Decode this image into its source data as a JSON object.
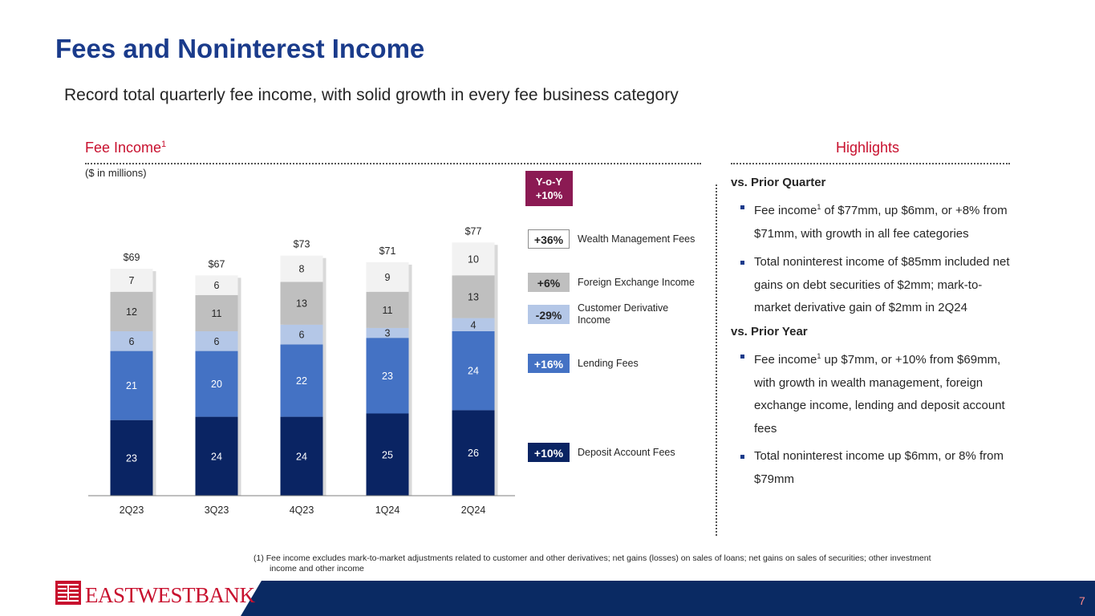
{
  "page": {
    "title": "Fees and Noninterest Income",
    "subtitle": "Record total quarterly fee income, with solid growth in every fee business category",
    "page_number": "7"
  },
  "left_header": {
    "label": "Fee Income",
    "sup": "1"
  },
  "right_header": {
    "label": "Highlights"
  },
  "units_note": "($ in millions)",
  "yoy": {
    "line1": "Y-o-Y",
    "line2": "+10%"
  },
  "legend": [
    {
      "pct": "+36%",
      "label": "Wealth Management Fees",
      "badge_bg": "#ffffff",
      "badge_fg": "#262626",
      "badge_border": "#8c8c8c"
    },
    {
      "pct": "+6%",
      "label": "Foreign Exchange Income",
      "badge_bg": "#bfbfbf",
      "badge_fg": "#262626",
      "badge_border": "#bfbfbf"
    },
    {
      "pct": "-29%",
      "label": "Customer Derivative Income",
      "badge_bg": "#b4c7e7",
      "badge_fg": "#262626",
      "badge_border": "#b4c7e7"
    },
    {
      "pct": "+16%",
      "label": "Lending Fees",
      "badge_bg": "#4472c4",
      "badge_fg": "#ffffff",
      "badge_border": "#4472c4"
    },
    {
      "pct": "+10%",
      "label": "Deposit Account Fees",
      "badge_bg": "#0a2463",
      "badge_fg": "#ffffff",
      "badge_border": "#0a2463"
    }
  ],
  "chart_data": {
    "type": "bar",
    "stacked": true,
    "title": "Fee Income",
    "ylabel": "$ in millions",
    "categories": [
      "2Q23",
      "3Q23",
      "4Q23",
      "1Q24",
      "2Q24"
    ],
    "totals": [
      "$69",
      "$67",
      "$73",
      "$71",
      "$77"
    ],
    "series": [
      {
        "name": "Deposit Account Fees",
        "color": "#0a2463",
        "label_color": "#ffffff",
        "values": [
          23,
          24,
          24,
          25,
          26
        ]
      },
      {
        "name": "Lending Fees",
        "color": "#4472c4",
        "label_color": "#ffffff",
        "values": [
          21,
          20,
          22,
          23,
          24
        ]
      },
      {
        "name": "Customer Derivative Income",
        "color": "#b4c7e7",
        "label_color": "#262626",
        "values": [
          6,
          6,
          6,
          3,
          4
        ]
      },
      {
        "name": "Foreign Exchange Income",
        "color": "#bfbfbf",
        "label_color": "#262626",
        "values": [
          12,
          11,
          13,
          11,
          13
        ]
      },
      {
        "name": "Wealth Management Fees",
        "color": "#f2f2f2",
        "label_color": "#262626",
        "values": [
          7,
          6,
          8,
          9,
          10
        ]
      }
    ],
    "ylim": [
      0,
      80
    ],
    "grid": false
  },
  "highlights": {
    "prior_quarter_heading": "vs. Prior Quarter",
    "prior_quarter_bullets": [
      {
        "pre": "Fee income",
        "sup": "1",
        "post": " of $77mm, up $6mm, or +8% from $71mm, with growth in all fee categories"
      },
      {
        "pre": "Total noninterest income of $85mm included net gains on debt securities of $2mm; mark-to-market derivative gain of $2mm in 2Q24",
        "sup": "",
        "post": ""
      }
    ],
    "prior_year_heading": "vs. Prior Year",
    "prior_year_bullets": [
      {
        "pre": "Fee income",
        "sup": "1",
        "post": " up $7mm, or +10% from $69mm, with growth in wealth management, foreign exchange income, lending and deposit account fees"
      },
      {
        "pre": "Total noninterest income up $6mm, or 8% from $79mm",
        "sup": "",
        "post": ""
      }
    ]
  },
  "footnote": {
    "line1": "(1) Fee income excludes mark-to-market adjustments related to customer and other derivatives; net gains (losses) on sales of loans; net gains on sales of securities; other investment",
    "line2": "income and other income"
  },
  "logo": {
    "text": "EASTWESTBANK"
  }
}
